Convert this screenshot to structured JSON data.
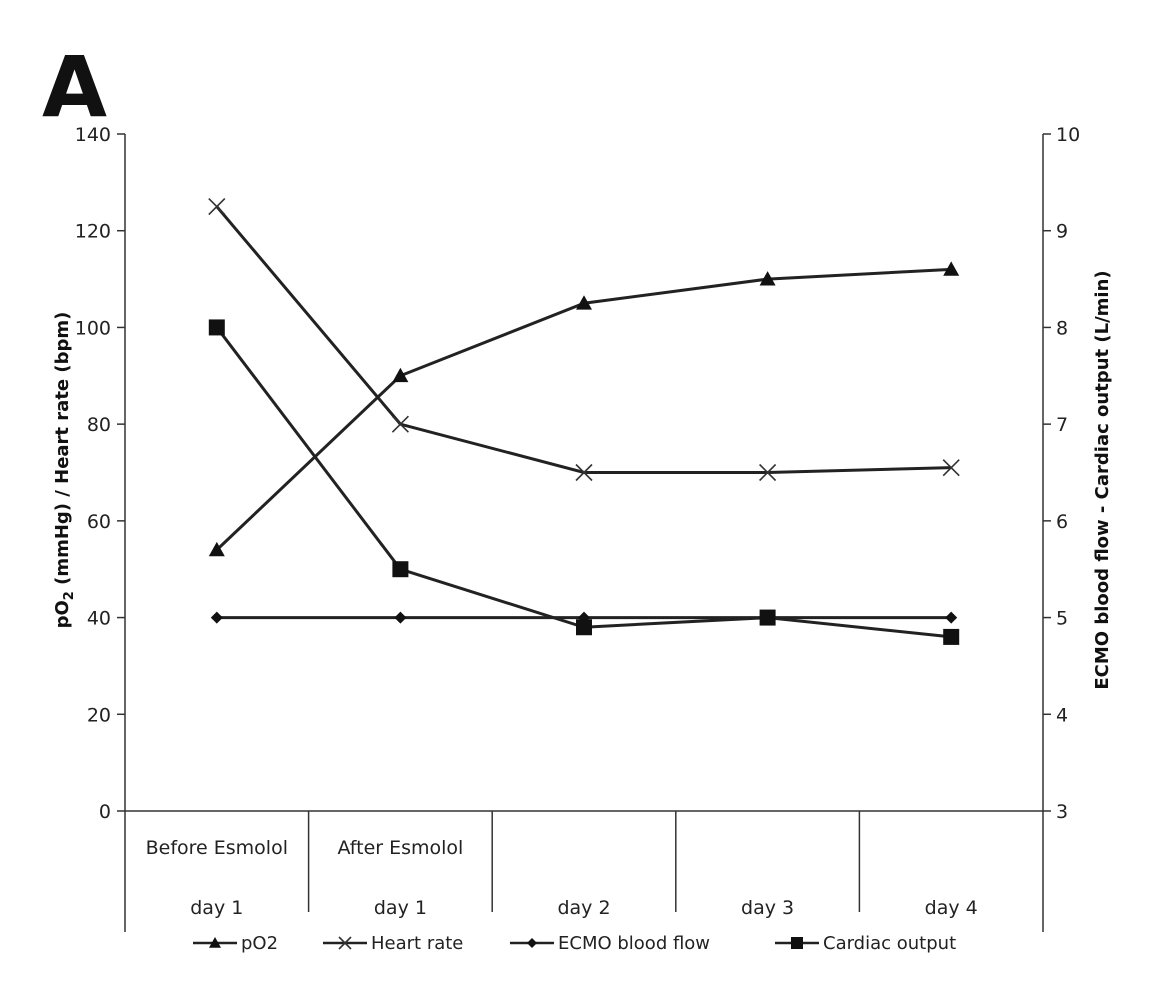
{
  "chart_data": {
    "type": "line",
    "panel_label": "A",
    "categories": [
      {
        "top": "Before Esmolol",
        "bottom": "day 1"
      },
      {
        "top": "After Esmolol",
        "bottom": "day 1"
      },
      {
        "top": "",
        "bottom": "day 2"
      },
      {
        "top": "",
        "bottom": "day 3"
      },
      {
        "top": "",
        "bottom": "day 4"
      }
    ],
    "y_left": {
      "label_parts": {
        "main": "pO",
        "sub": "2",
        "rest": " (mmHg) / Heart rate (bpm)"
      },
      "ylim": [
        0,
        140
      ],
      "ticks": [
        "0",
        "20",
        "40",
        "60",
        "80",
        "100",
        "120",
        "140"
      ]
    },
    "y_right": {
      "label": "ECMO blood flow - Cardiac output (L/min)",
      "ylim": [
        3,
        10
      ],
      "ticks": [
        "3",
        "4",
        "5",
        "6",
        "7",
        "8",
        "9",
        "10"
      ]
    },
    "series": [
      {
        "name": "pO2",
        "axis": "left",
        "marker": "triangle",
        "values": [
          54,
          90,
          105,
          110,
          112
        ]
      },
      {
        "name": "Heart rate",
        "axis": "left",
        "marker": "x",
        "values": [
          125,
          80,
          70,
          70,
          71
        ]
      },
      {
        "name": "ECMO blood flow",
        "axis": "right",
        "marker": "diamond",
        "values": [
          5,
          5,
          5,
          5,
          5
        ]
      },
      {
        "name": "Cardiac output",
        "axis": "right",
        "marker": "square",
        "values": [
          8.0,
          5.5,
          4.9,
          5.0,
          4.8
        ]
      }
    ],
    "grid": false,
    "legend_position": "bottom"
  }
}
